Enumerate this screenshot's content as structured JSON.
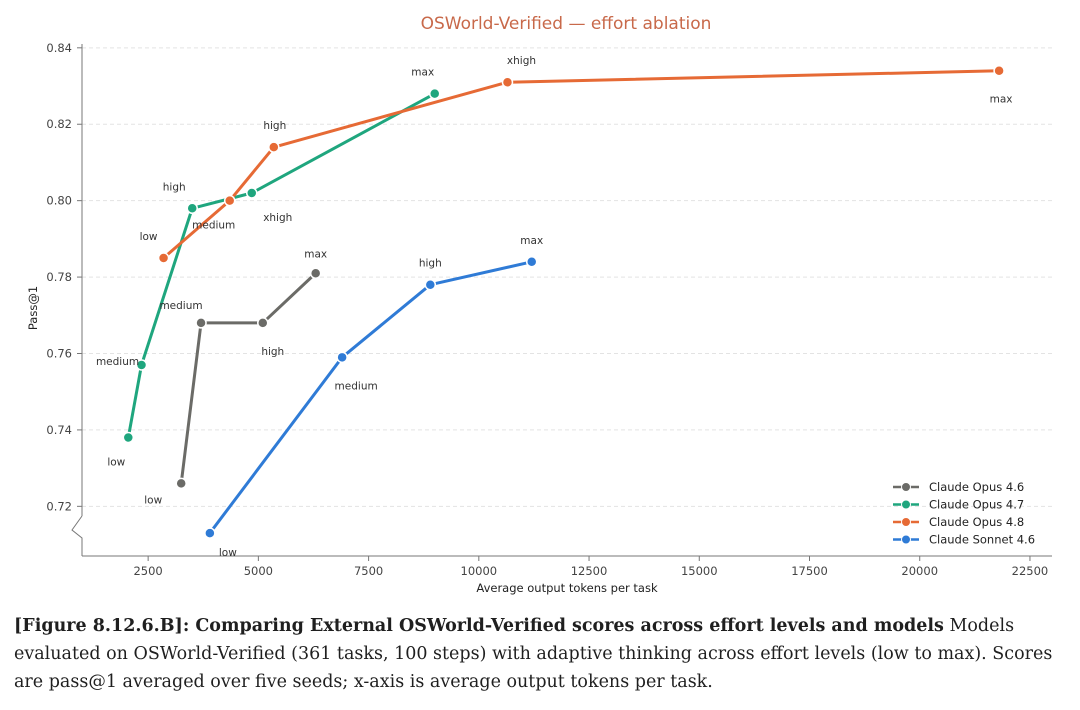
{
  "chart_data": {
    "type": "line",
    "title": "OSWorld-Verified — effort ablation",
    "xlabel": "Average output tokens per task",
    "ylabel": "Pass@1",
    "xlim": [
      1000,
      23000
    ],
    "ylim": [
      0.707,
      0.841
    ],
    "xticks": [
      2500,
      5000,
      7500,
      10000,
      12500,
      15000,
      17500,
      20000,
      22500
    ],
    "yticks": [
      0.72,
      0.74,
      0.76,
      0.78,
      0.8,
      0.82,
      0.84
    ],
    "grid": "horizontal dashed",
    "legend_position": "bottom-right",
    "y_axis_break": true,
    "series": [
      {
        "name": "Claude Opus 4.6",
        "color": "#6b6b67",
        "points": [
          {
            "label": "low",
            "x": 3250,
            "y": 0.726
          },
          {
            "label": "medium",
            "x": 3700,
            "y": 0.768
          },
          {
            "label": "high",
            "x": 5100,
            "y": 0.768
          },
          {
            "label": "max",
            "x": 6300,
            "y": 0.781
          }
        ]
      },
      {
        "name": "Claude Opus 4.7",
        "color": "#1fa67e",
        "points": [
          {
            "label": "low",
            "x": 2050,
            "y": 0.738
          },
          {
            "label": "medium",
            "x": 2350,
            "y": 0.757
          },
          {
            "label": "high",
            "x": 3500,
            "y": 0.798
          },
          {
            "label": "xhigh",
            "x": 4850,
            "y": 0.802
          },
          {
            "label": "max",
            "x": 9000,
            "y": 0.828
          }
        ]
      },
      {
        "name": "Claude Opus 4.8",
        "color": "#e66a35",
        "points": [
          {
            "label": "low",
            "x": 2850,
            "y": 0.785
          },
          {
            "label": "medium",
            "x": 4350,
            "y": 0.8
          },
          {
            "label": "high",
            "x": 5350,
            "y": 0.814
          },
          {
            "label": "xhigh",
            "x": 10650,
            "y": 0.831
          },
          {
            "label": "max",
            "x": 21800,
            "y": 0.834
          }
        ]
      },
      {
        "name": "Claude Sonnet 4.6",
        "color": "#2f7bd6",
        "points": [
          {
            "label": "low",
            "x": 3900,
            "y": 0.713
          },
          {
            "label": "medium",
            "x": 6900,
            "y": 0.759
          },
          {
            "label": "high",
            "x": 8900,
            "y": 0.778
          },
          {
            "label": "max",
            "x": 11200,
            "y": 0.784
          }
        ]
      }
    ]
  },
  "caption": {
    "bold": "[Figure 8.12.6.B]: Comparing External OSWorld-Verified scores across effort levels and models",
    "text": " Models evaluated on OSWorld-Verified (361 tasks, 100 steps) with adaptive thinking across effort levels (low to max). Scores are pass@1 averaged over five seeds; x-axis is average output tokens per task."
  }
}
